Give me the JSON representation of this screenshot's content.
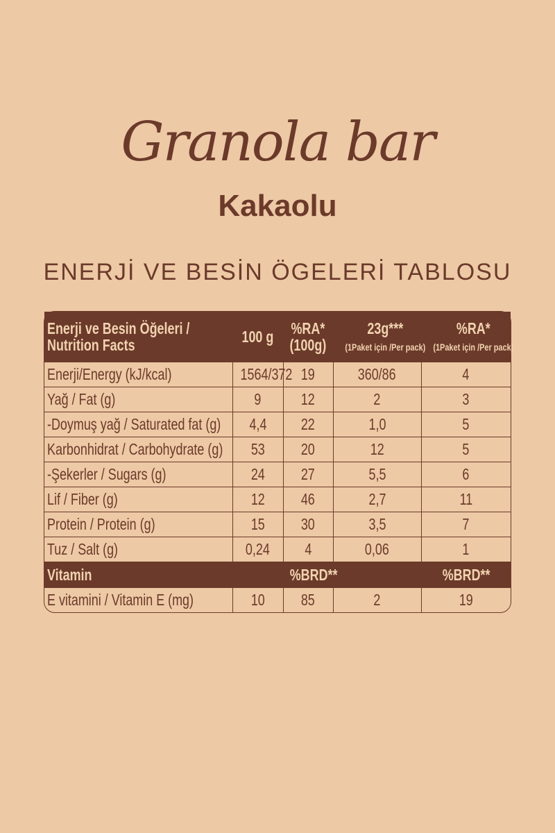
{
  "title": "Granola bar",
  "subtitle": "Kakaolu",
  "heading": "ENERJİ VE BESİN ÖGELERİ TABLOSU",
  "colors": {
    "background": "#EDC9A5",
    "brown": "#6B3A2A",
    "header_text": "#F2D3B0"
  },
  "table": {
    "header": {
      "label_line1": "Enerji ve Besin Öğeleri /",
      "label_line2": "Nutrition Facts",
      "col1": "100 g",
      "col2_line1": "%RA*",
      "col2_line2": "(100g)",
      "col3_line1": "23g***",
      "col3_line2": "(1Paket için /Per pack)",
      "col4_line1": "%RA*",
      "col4_line2": "(1Paket için /Per pack)"
    },
    "rows": [
      [
        "Enerji/Energy (kJ/kcal)",
        "1564/372",
        "19",
        "360/86",
        "4"
      ],
      [
        "Yağ / Fat (g)",
        "9",
        "12",
        "2",
        "3"
      ],
      [
        " -Doymuş yağ / Saturated fat (g)",
        "4,4",
        "22",
        "1,0",
        "5"
      ],
      [
        "Karbonhidrat / Carbohydrate (g)",
        "53",
        "20",
        "12",
        "5"
      ],
      [
        " -Şekerler / Sugars (g)",
        "24",
        "27",
        "5,5",
        "6"
      ],
      [
        "Lif / Fiber (g)",
        "12",
        "46",
        "2,7",
        "11"
      ],
      [
        "Protein / Protein (g)",
        "15",
        "30",
        "3,5",
        "7"
      ],
      [
        "Tuz / Salt (g)",
        "0,24",
        "4",
        "0,06",
        "1"
      ]
    ],
    "vitamin_header": {
      "label": "Vitamin",
      "col2": "%BRD**",
      "col4": "%BRD**"
    },
    "vitamin_rows": [
      [
        "E vitamini / Vitamin E (mg)",
        "10",
        "85",
        "2",
        "19"
      ]
    ]
  }
}
